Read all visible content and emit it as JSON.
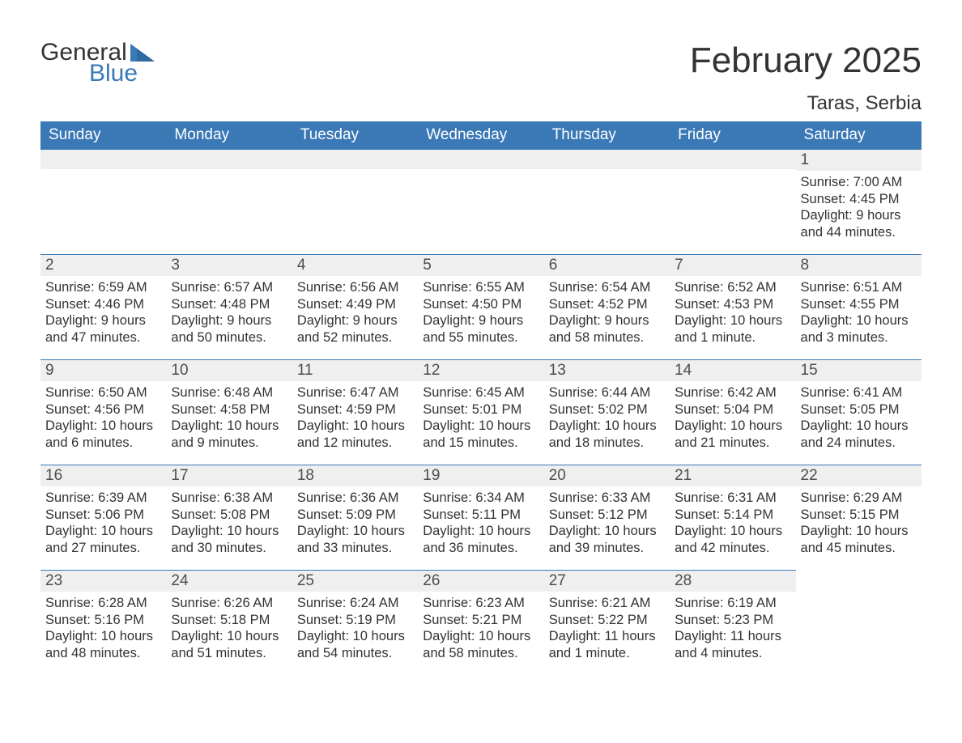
{
  "colors": {
    "accent": "#3a78b6",
    "header_band": "#3a78b6",
    "header_text": "#ffffff",
    "day_bar_bg": "#efefef",
    "text": "#333333",
    "page_bg": "#ffffff"
  },
  "logo": {
    "word1": "General",
    "word2": "Blue"
  },
  "title": "February 2025",
  "location": "Taras, Serbia",
  "weekday_headers": [
    "Sunday",
    "Monday",
    "Tuesday",
    "Wednesday",
    "Thursday",
    "Friday",
    "Saturday"
  ],
  "layout": {
    "columns": 7,
    "rows": 5,
    "font_family": "Arial",
    "title_fontsize": 44,
    "location_fontsize": 24,
    "weekday_fontsize": 19,
    "day_number_fontsize": 19,
    "body_fontsize": 16.5
  },
  "days": {
    "1": {
      "sunrise": "7:00 AM",
      "sunset": "4:45 PM",
      "daylight": "9 hours and 44 minutes."
    },
    "2": {
      "sunrise": "6:59 AM",
      "sunset": "4:46 PM",
      "daylight": "9 hours and 47 minutes."
    },
    "3": {
      "sunrise": "6:57 AM",
      "sunset": "4:48 PM",
      "daylight": "9 hours and 50 minutes."
    },
    "4": {
      "sunrise": "6:56 AM",
      "sunset": "4:49 PM",
      "daylight": "9 hours and 52 minutes."
    },
    "5": {
      "sunrise": "6:55 AM",
      "sunset": "4:50 PM",
      "daylight": "9 hours and 55 minutes."
    },
    "6": {
      "sunrise": "6:54 AM",
      "sunset": "4:52 PM",
      "daylight": "9 hours and 58 minutes."
    },
    "7": {
      "sunrise": "6:52 AM",
      "sunset": "4:53 PM",
      "daylight": "10 hours and 1 minute."
    },
    "8": {
      "sunrise": "6:51 AM",
      "sunset": "4:55 PM",
      "daylight": "10 hours and 3 minutes."
    },
    "9": {
      "sunrise": "6:50 AM",
      "sunset": "4:56 PM",
      "daylight": "10 hours and 6 minutes."
    },
    "10": {
      "sunrise": "6:48 AM",
      "sunset": "4:58 PM",
      "daylight": "10 hours and 9 minutes."
    },
    "11": {
      "sunrise": "6:47 AM",
      "sunset": "4:59 PM",
      "daylight": "10 hours and 12 minutes."
    },
    "12": {
      "sunrise": "6:45 AM",
      "sunset": "5:01 PM",
      "daylight": "10 hours and 15 minutes."
    },
    "13": {
      "sunrise": "6:44 AM",
      "sunset": "5:02 PM",
      "daylight": "10 hours and 18 minutes."
    },
    "14": {
      "sunrise": "6:42 AM",
      "sunset": "5:04 PM",
      "daylight": "10 hours and 21 minutes."
    },
    "15": {
      "sunrise": "6:41 AM",
      "sunset": "5:05 PM",
      "daylight": "10 hours and 24 minutes."
    },
    "16": {
      "sunrise": "6:39 AM",
      "sunset": "5:06 PM",
      "daylight": "10 hours and 27 minutes."
    },
    "17": {
      "sunrise": "6:38 AM",
      "sunset": "5:08 PM",
      "daylight": "10 hours and 30 minutes."
    },
    "18": {
      "sunrise": "6:36 AM",
      "sunset": "5:09 PM",
      "daylight": "10 hours and 33 minutes."
    },
    "19": {
      "sunrise": "6:34 AM",
      "sunset": "5:11 PM",
      "daylight": "10 hours and 36 minutes."
    },
    "20": {
      "sunrise": "6:33 AM",
      "sunset": "5:12 PM",
      "daylight": "10 hours and 39 minutes."
    },
    "21": {
      "sunrise": "6:31 AM",
      "sunset": "5:14 PM",
      "daylight": "10 hours and 42 minutes."
    },
    "22": {
      "sunrise": "6:29 AM",
      "sunset": "5:15 PM",
      "daylight": "10 hours and 45 minutes."
    },
    "23": {
      "sunrise": "6:28 AM",
      "sunset": "5:16 PM",
      "daylight": "10 hours and 48 minutes."
    },
    "24": {
      "sunrise": "6:26 AM",
      "sunset": "5:18 PM",
      "daylight": "10 hours and 51 minutes."
    },
    "25": {
      "sunrise": "6:24 AM",
      "sunset": "5:19 PM",
      "daylight": "10 hours and 54 minutes."
    },
    "26": {
      "sunrise": "6:23 AM",
      "sunset": "5:21 PM",
      "daylight": "10 hours and 58 minutes."
    },
    "27": {
      "sunrise": "6:21 AM",
      "sunset": "5:22 PM",
      "daylight": "11 hours and 1 minute."
    },
    "28": {
      "sunrise": "6:19 AM",
      "sunset": "5:23 PM",
      "daylight": "11 hours and 4 minutes."
    }
  },
  "grid": [
    [
      null,
      null,
      null,
      null,
      null,
      null,
      "1"
    ],
    [
      "2",
      "3",
      "4",
      "5",
      "6",
      "7",
      "8"
    ],
    [
      "9",
      "10",
      "11",
      "12",
      "13",
      "14",
      "15"
    ],
    [
      "16",
      "17",
      "18",
      "19",
      "20",
      "21",
      "22"
    ],
    [
      "23",
      "24",
      "25",
      "26",
      "27",
      "28",
      null
    ]
  ],
  "labels": {
    "sunrise_prefix": "Sunrise: ",
    "sunset_prefix": "Sunset: ",
    "daylight_prefix": "Daylight: "
  }
}
